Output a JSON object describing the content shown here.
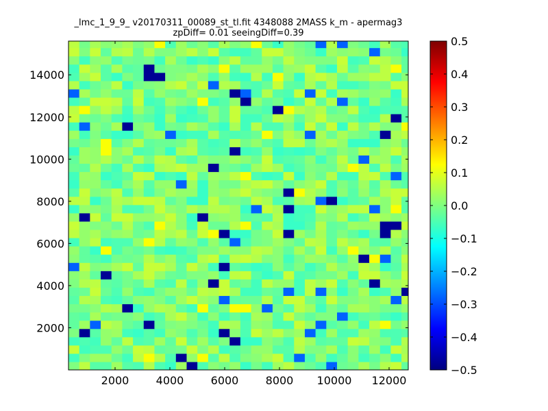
{
  "chart_data": {
    "type": "heatmap",
    "title": [
      "_lmc_1_9_9_ v20170311_00089_st_tl.fit 4348088 2MASS k_m - apermag3",
      "zpDiff= 0.01 seeingDiff=0.39"
    ],
    "xlabel": "",
    "ylabel": "",
    "xlim": [
      300,
      12700
    ],
    "ylim": [
      0,
      15600
    ],
    "xticks": [
      2000,
      4000,
      6000,
      8000,
      10000,
      12000
    ],
    "yticks": [
      2000,
      4000,
      6000,
      8000,
      10000,
      12000,
      14000
    ],
    "xtick_labels": [
      "2000",
      "4000",
      "6000",
      "8000",
      "10000",
      "12000"
    ],
    "ytick_labels": [
      "2000",
      "4000",
      "6000",
      "8000",
      "10000",
      "12000",
      "14000"
    ],
    "cell_x0": 300,
    "cell_y0": 0,
    "cell_size": 392,
    "colormap": "jet",
    "colorbar": {
      "vmin": -0.5,
      "vmax": 0.5,
      "ticks": [
        0.5,
        0.4,
        0.3,
        0.2,
        0.1,
        0.0,
        -0.1,
        -0.2,
        -0.3,
        -0.4,
        -0.5
      ],
      "tick_labels": [
        "0.5",
        "0.4",
        "0.3",
        "0.2",
        "0.1",
        "0.0",
        "−0.1",
        "−0.2",
        "−0.3",
        "−0.4",
        "−0.5"
      ]
    },
    "grid": false,
    "values": []
  }
}
